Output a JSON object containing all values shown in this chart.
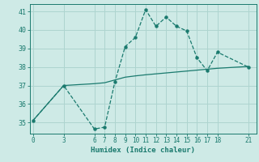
{
  "x_ticks": [
    0,
    3,
    6,
    7,
    8,
    9,
    10,
    11,
    12,
    13,
    14,
    15,
    16,
    17,
    18,
    21
  ],
  "humidex_x": [
    0,
    3,
    6,
    7,
    8,
    9,
    10,
    11,
    12,
    13,
    14,
    15,
    16,
    17,
    18,
    21
  ],
  "humidex_y": [
    35.1,
    37.0,
    34.65,
    34.75,
    37.2,
    39.1,
    39.6,
    41.1,
    40.2,
    40.7,
    40.2,
    39.95,
    38.5,
    37.8,
    38.8,
    38.0
  ],
  "trend_x": [
    0,
    3,
    6,
    7,
    8,
    9,
    10,
    11,
    12,
    13,
    14,
    15,
    16,
    17,
    18,
    21
  ],
  "trend_y": [
    35.1,
    37.0,
    37.1,
    37.15,
    37.3,
    37.45,
    37.52,
    37.58,
    37.63,
    37.68,
    37.73,
    37.78,
    37.83,
    37.88,
    37.93,
    38.03
  ],
  "xlim": [
    -0.3,
    21.8
  ],
  "ylim": [
    34.4,
    41.4
  ],
  "yticks": [
    35,
    36,
    37,
    38,
    39,
    40,
    41
  ],
  "xlabel": "Humidex (Indice chaleur)",
  "line_color": "#1a7a6e",
  "bg_color": "#ceeae6",
  "grid_color": "#aed4cf",
  "title": ""
}
